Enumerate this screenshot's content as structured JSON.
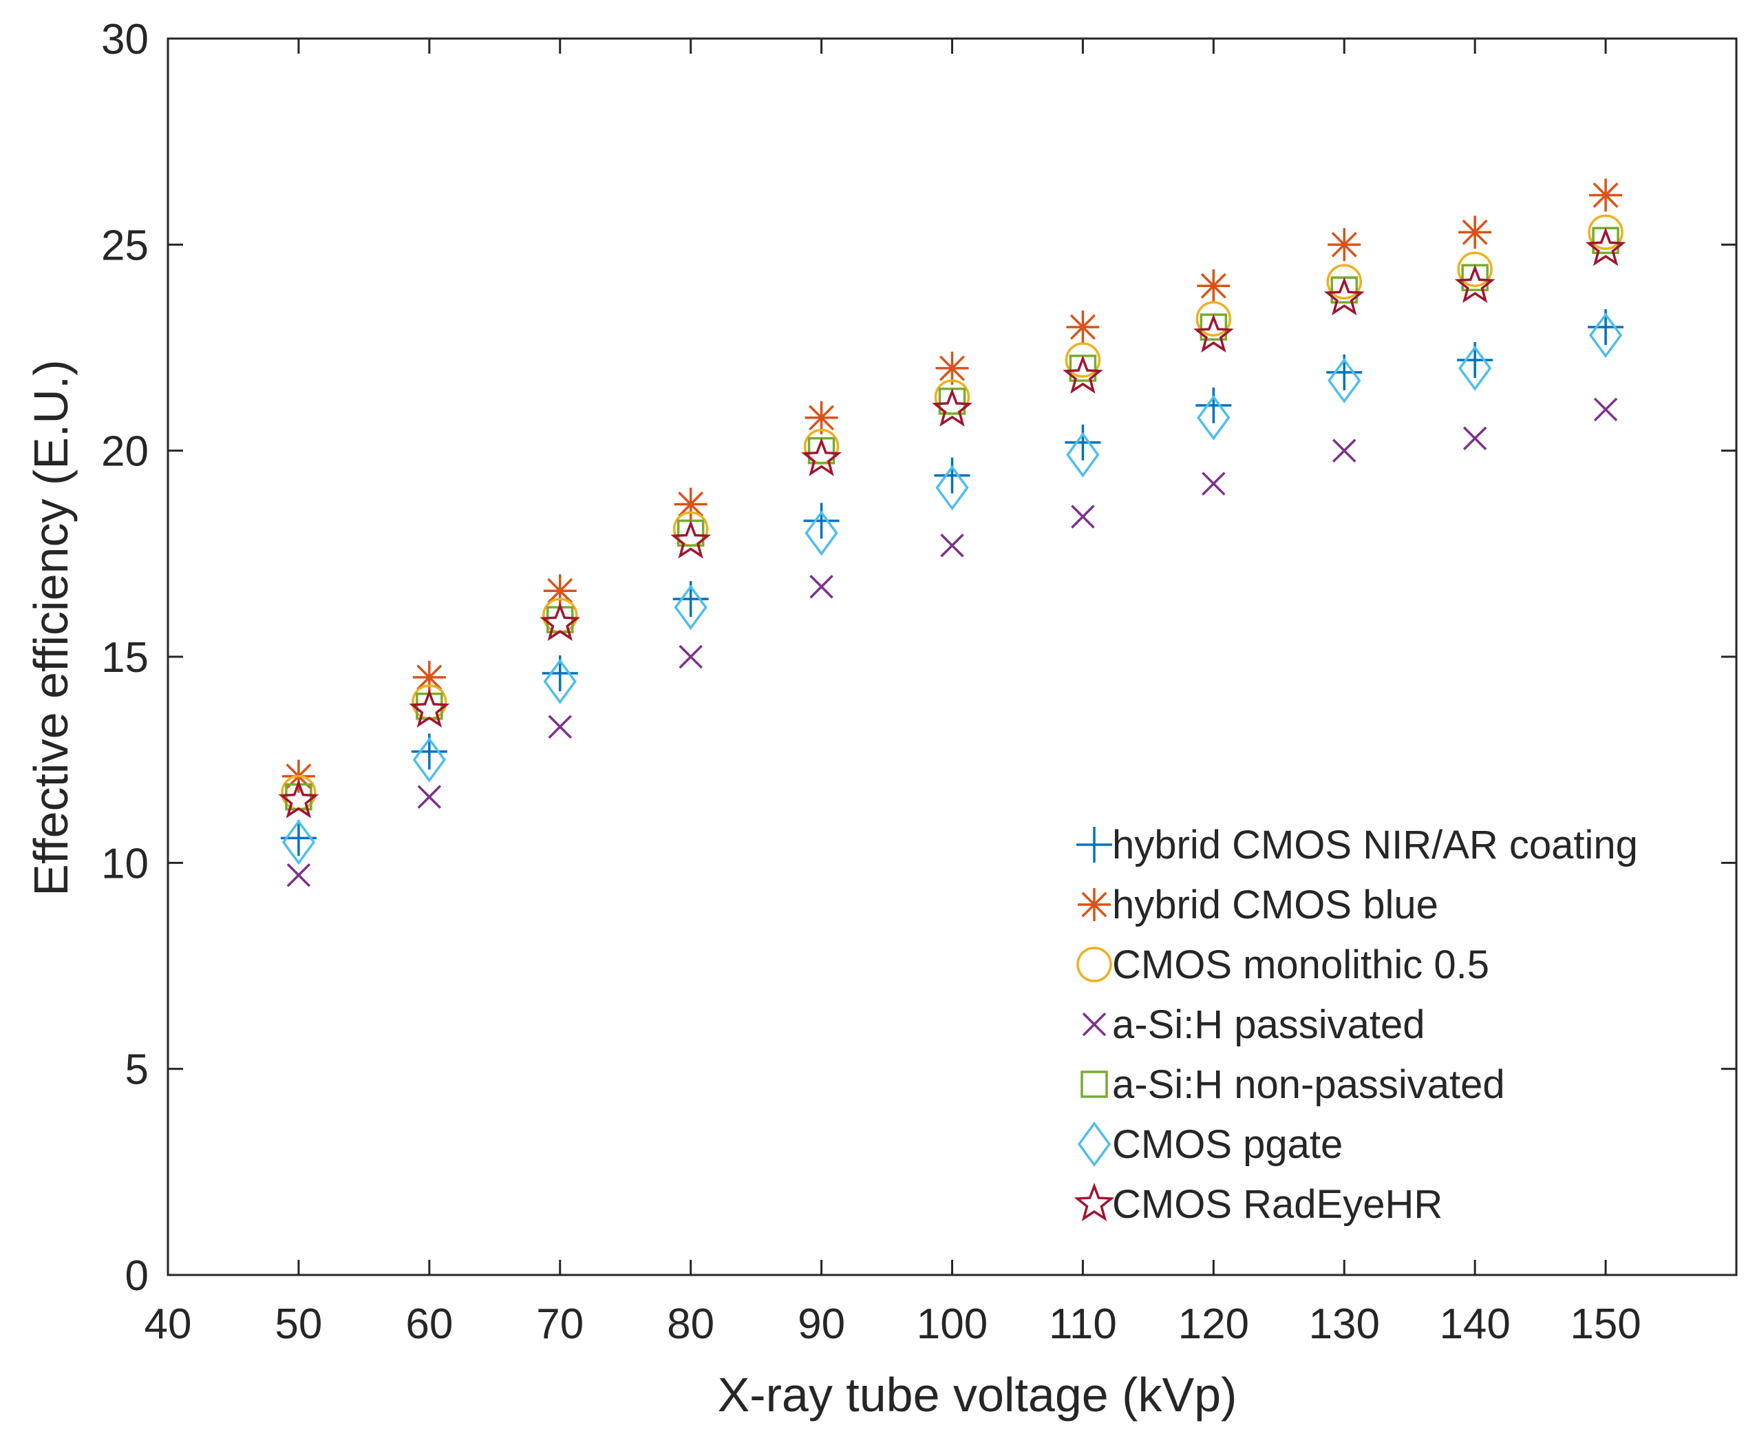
{
  "chart_data": {
    "type": "scatter",
    "title": "",
    "xlabel": "X-ray tube voltage (kVp)",
    "ylabel": "Effective efficiency (E.U.)",
    "xlim": [
      40,
      160
    ],
    "ylim": [
      0,
      30
    ],
    "xticks": [
      40,
      50,
      60,
      70,
      80,
      90,
      100,
      110,
      120,
      130,
      140,
      150
    ],
    "yticks": [
      0,
      5,
      10,
      15,
      20,
      25,
      30
    ],
    "grid": false,
    "legend_position": "bottom-right",
    "x": [
      50,
      60,
      70,
      80,
      90,
      100,
      110,
      120,
      130,
      140,
      150
    ],
    "series": [
      {
        "name": "hybrid CMOS NIR/AR coating",
        "marker": "plus",
        "color": "#0072BD",
        "values": [
          10.6,
          12.7,
          14.6,
          16.4,
          18.3,
          19.4,
          20.2,
          21.1,
          21.9,
          22.2,
          23.0
        ]
      },
      {
        "name": "hybrid CMOS blue",
        "marker": "asterisk",
        "color": "#D95319",
        "values": [
          12.1,
          14.5,
          16.6,
          18.7,
          20.8,
          22.0,
          23.0,
          24.0,
          25.0,
          25.3,
          26.2
        ]
      },
      {
        "name": "CMOS monolithic 0.5",
        "marker": "circle",
        "color": "#EDB120",
        "values": [
          11.7,
          13.9,
          16.0,
          18.1,
          20.1,
          21.3,
          22.2,
          23.2,
          24.1,
          24.4,
          25.3
        ]
      },
      {
        "name": "a-Si:H passivated",
        "marker": "x",
        "color": "#7E2F8E",
        "values": [
          9.7,
          11.6,
          13.3,
          15.0,
          16.7,
          17.7,
          18.4,
          19.2,
          20.0,
          20.3,
          21.0
        ]
      },
      {
        "name": "a-Si:H non-passivated",
        "marker": "square",
        "color": "#77AC30",
        "values": [
          11.6,
          13.8,
          15.9,
          18.0,
          20.0,
          21.2,
          22.0,
          23.0,
          23.9,
          24.2,
          25.1
        ]
      },
      {
        "name": "CMOS pgate",
        "marker": "diamond",
        "color": "#4DBEEE",
        "values": [
          10.5,
          12.5,
          14.4,
          16.2,
          18.0,
          19.1,
          19.9,
          20.8,
          21.7,
          22.0,
          22.8
        ]
      },
      {
        "name": "CMOS RadEyeHR",
        "marker": "star",
        "color": "#A2142F",
        "values": [
          11.5,
          13.7,
          15.8,
          17.8,
          19.8,
          21.0,
          21.8,
          22.8,
          23.7,
          24.0,
          24.9
        ]
      }
    ]
  }
}
